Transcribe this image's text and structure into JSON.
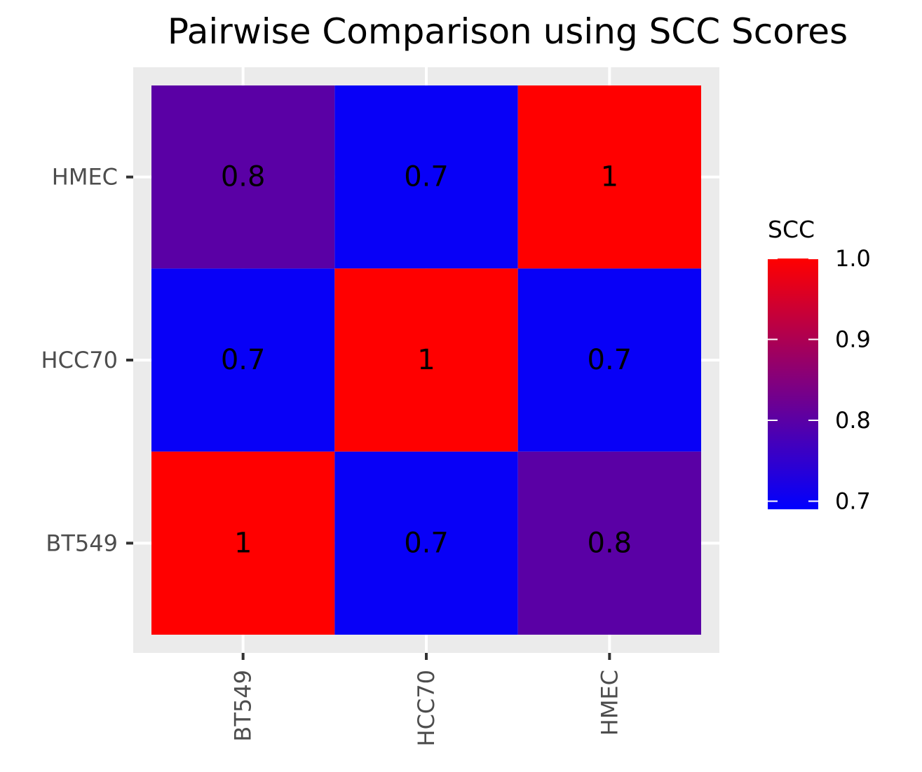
{
  "chart_data": {
    "type": "heatmap",
    "title": "Pairwise Comparison using SCC Scores",
    "xlabel": "",
    "ylabel": "",
    "x_categories": [
      "BT549",
      "HCC70",
      "HMEC"
    ],
    "y_categories": [
      "BT549",
      "HCC70",
      "HMEC"
    ],
    "cells": [
      {
        "x": "BT549",
        "y": "HMEC",
        "value": 0.8,
        "label": "0.8"
      },
      {
        "x": "HCC70",
        "y": "HMEC",
        "value": 0.7,
        "label": "0.7"
      },
      {
        "x": "HMEC",
        "y": "HMEC",
        "value": 1.0,
        "label": "1"
      },
      {
        "x": "BT549",
        "y": "HCC70",
        "value": 0.7,
        "label": "0.7"
      },
      {
        "x": "HCC70",
        "y": "HCC70",
        "value": 1.0,
        "label": "1"
      },
      {
        "x": "HMEC",
        "y": "HCC70",
        "value": 0.7,
        "label": "0.7"
      },
      {
        "x": "BT549",
        "y": "BT549",
        "value": 1.0,
        "label": "1"
      },
      {
        "x": "HCC70",
        "y": "BT549",
        "value": 0.7,
        "label": "0.7"
      },
      {
        "x": "HMEC",
        "y": "BT549",
        "value": 0.8,
        "label": "0.8"
      }
    ],
    "legend": {
      "title": "SCC",
      "placement": "right",
      "range": [
        0.69,
        1.0
      ],
      "ticks": [
        1.0,
        0.9,
        0.8,
        0.7
      ],
      "tick_labels": [
        "1.0",
        "0.9",
        "0.8",
        "0.7"
      ],
      "low_color": "#0000ff",
      "high_color": "#ff0000"
    },
    "panel_background": "#ebebeb",
    "grid_color": "#ffffff",
    "grid": true
  }
}
